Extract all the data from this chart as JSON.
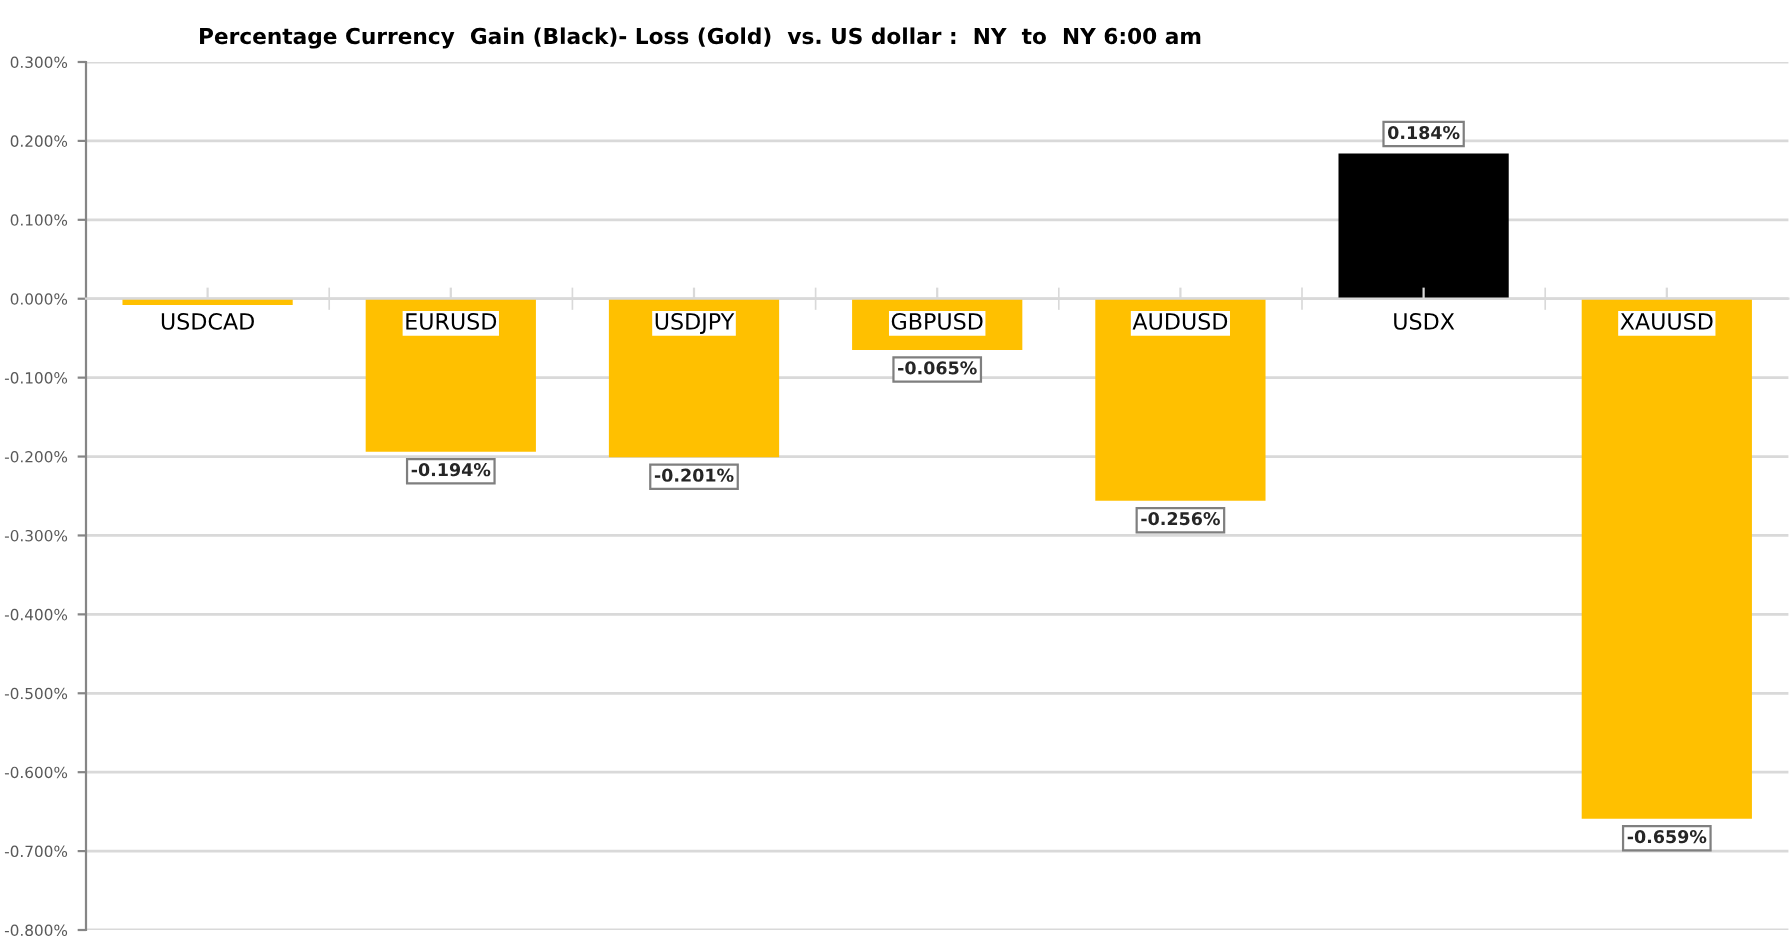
{
  "chart_data": {
    "type": "bar",
    "title": "Percentage Currency  Gain (Black)- Loss (Gold)  vs. US dollar :  NY  to  NY 6:00 am",
    "categories": [
      "USDCAD",
      "EURUSD",
      "USDJPY",
      "GBPUSD",
      "AUDUSD",
      "USDX",
      "XAUUSD"
    ],
    "values": [
      -0.008,
      -0.194,
      -0.201,
      -0.065,
      -0.256,
      0.184,
      -0.659
    ],
    "colors": [
      "#ffc000",
      "#ffc000",
      "#ffc000",
      "#ffc000",
      "#ffc000",
      "#000000",
      "#ffc000"
    ],
    "value_labels": [
      null,
      "-0.194%",
      "-0.201%",
      "-0.065%",
      "-0.256%",
      "0.184%",
      "-0.659%"
    ],
    "ylim": [
      -0.8,
      0.3
    ],
    "yticks": [
      {
        "value": 0.3,
        "label": "0.300%"
      },
      {
        "value": 0.2,
        "label": "0.200%"
      },
      {
        "value": 0.1,
        "label": "0.100%"
      },
      {
        "value": 0,
        "label": "0.000%"
      },
      {
        "value": -0.1,
        "label": "-0.100%"
      },
      {
        "value": -0.2,
        "label": "-0.200%"
      },
      {
        "value": -0.3,
        "label": "-0.300%"
      },
      {
        "value": -0.4,
        "label": "-0.400%"
      },
      {
        "value": -0.5,
        "label": "-0.500%"
      },
      {
        "value": -0.6,
        "label": "-0.600%"
      },
      {
        "value": -0.7,
        "label": "-0.700%"
      },
      {
        "value": -0.8,
        "label": "-0.800%"
      }
    ],
    "grid": "y"
  }
}
